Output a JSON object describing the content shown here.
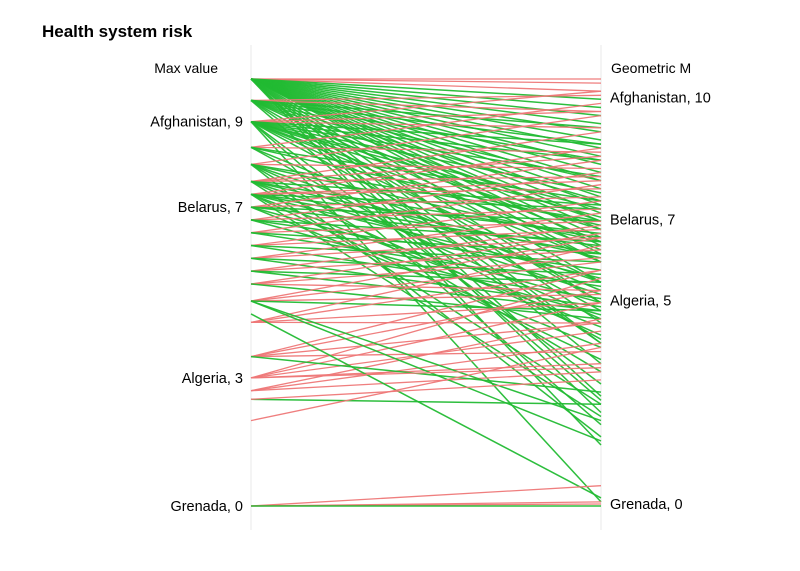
{
  "chart_data": {
    "type": "slope",
    "title": "Health system risk",
    "left_axis": {
      "title": "Max value",
      "range": [
        0,
        10
      ],
      "labels": [
        {
          "text": "Afghanistan, 9",
          "value": 9
        },
        {
          "text": "Belarus, 7",
          "value": 7
        },
        {
          "text": "Algeria, 3",
          "value": 3
        },
        {
          "text": "Grenada, 0",
          "value": 0
        }
      ]
    },
    "right_axis": {
      "title": "Geometric M",
      "range": [
        0,
        10.5
      ],
      "labels": [
        {
          "text": "Afghanistan, 10",
          "value": 10
        },
        {
          "text": "Belarus, 7",
          "value": 7
        },
        {
          "text": "Algeria, 5",
          "value": 5
        },
        {
          "text": "Grenada, 0",
          "value": 0
        }
      ]
    },
    "colors": {
      "decrease": "#22bb33",
      "increase": "#ee7777"
    },
    "lines": [
      [
        10,
        10.5
      ],
      [
        10,
        10.4
      ],
      [
        10,
        10.2
      ],
      [
        10,
        10.0
      ],
      [
        10,
        9.8
      ],
      [
        10,
        9.6
      ],
      [
        10,
        9.4
      ],
      [
        10,
        9.2
      ],
      [
        10,
        9.0
      ],
      [
        10,
        8.8
      ],
      [
        10,
        8.6
      ],
      [
        10,
        8.4
      ],
      [
        10,
        8.2
      ],
      [
        10,
        8.0
      ],
      [
        10,
        7.8
      ],
      [
        10,
        7.6
      ],
      [
        10,
        7.4
      ],
      [
        10,
        7.2
      ],
      [
        10,
        7.0
      ],
      [
        10,
        6.8
      ],
      [
        10,
        6.6
      ],
      [
        10,
        6.4
      ],
      [
        10,
        6.2
      ],
      [
        10,
        6.0
      ],
      [
        10,
        5.5
      ],
      [
        10,
        5.0
      ],
      [
        10,
        4.5
      ],
      [
        10,
        4.0
      ],
      [
        10,
        3.5
      ],
      [
        10,
        2.7
      ],
      [
        10,
        2.3
      ],
      [
        10,
        1.5
      ],
      [
        9.5,
        10.1
      ],
      [
        9.5,
        9.7
      ],
      [
        9.5,
        9.3
      ],
      [
        9.5,
        8.9
      ],
      [
        9.5,
        8.5
      ],
      [
        9.5,
        8.0
      ],
      [
        9.5,
        7.5
      ],
      [
        9.5,
        7.0
      ],
      [
        9.5,
        6.5
      ],
      [
        9.5,
        6.0
      ],
      [
        9.5,
        5.0
      ],
      [
        9.5,
        4.0
      ],
      [
        9.5,
        2.6
      ],
      [
        9,
        10.2
      ],
      [
        9,
        9.7
      ],
      [
        9,
        9.3
      ],
      [
        9,
        8.9
      ],
      [
        9,
        8.5
      ],
      [
        9,
        8.1
      ],
      [
        9,
        7.7
      ],
      [
        9,
        7.3
      ],
      [
        9,
        7.1
      ],
      [
        9,
        6.8
      ],
      [
        9,
        6.3
      ],
      [
        9,
        6.0
      ],
      [
        9,
        5.5
      ],
      [
        9,
        4.8
      ],
      [
        9,
        3.0
      ],
      [
        9,
        2.0
      ],
      [
        9,
        0.1
      ],
      [
        8.4,
        9.9
      ],
      [
        8.4,
        8.7
      ],
      [
        8.4,
        7.5
      ],
      [
        8.4,
        6.9
      ],
      [
        8.4,
        5.3
      ],
      [
        8.4,
        4.1
      ],
      [
        8.0,
        9.6
      ],
      [
        8.0,
        8.3
      ],
      [
        8.0,
        7.0
      ],
      [
        8.0,
        6.5
      ],
      [
        8.0,
        5.5
      ],
      [
        8.0,
        4.6
      ],
      [
        8.0,
        3.3
      ],
      [
        8.0,
        1.7
      ],
      [
        7.6,
        9.2
      ],
      [
        7.6,
        8.6
      ],
      [
        7.6,
        8.1
      ],
      [
        7.6,
        7.4
      ],
      [
        7.6,
        6.6
      ],
      [
        7.6,
        6.1
      ],
      [
        7.6,
        5.2
      ],
      [
        7.6,
        4.2
      ],
      [
        7.6,
        2.5
      ],
      [
        7.3,
        8.8
      ],
      [
        7.3,
        8.0
      ],
      [
        7.3,
        7.3
      ],
      [
        7.3,
        7.8
      ],
      [
        7.3,
        6.7
      ],
      [
        7.3,
        6.2
      ],
      [
        7.3,
        5.6
      ],
      [
        7.3,
        4.4
      ],
      [
        7.3,
        3.6
      ],
      [
        7.3,
        2.2
      ],
      [
        7.0,
        8.5
      ],
      [
        7.0,
        7.6
      ],
      [
        7.0,
        7.0
      ],
      [
        7.0,
        6.4
      ],
      [
        7.0,
        5.0
      ],
      [
        7.0,
        3.9
      ],
      [
        6.7,
        8.2
      ],
      [
        6.7,
        7.3
      ],
      [
        6.7,
        6.5
      ],
      [
        6.7,
        5.8
      ],
      [
        6.7,
        4.7
      ],
      [
        6.4,
        7.9
      ],
      [
        6.4,
        7.0
      ],
      [
        6.4,
        6.2
      ],
      [
        6.4,
        5.4
      ],
      [
        6.1,
        7.5
      ],
      [
        6.1,
        6.8
      ],
      [
        6.1,
        6.0
      ],
      [
        6.1,
        5.1
      ],
      [
        5.8,
        7.2
      ],
      [
        5.8,
        6.6
      ],
      [
        5.8,
        5.7
      ],
      [
        5.8,
        4.9
      ],
      [
        5.5,
        6.9
      ],
      [
        5.5,
        6.3
      ],
      [
        5.5,
        5.5
      ],
      [
        5.5,
        4.8
      ],
      [
        5.2,
        6.7
      ],
      [
        5.2,
        6.1
      ],
      [
        5.2,
        5.3
      ],
      [
        5.2,
        4.6
      ],
      [
        4.8,
        6.6
      ],
      [
        4.8,
        6.0
      ],
      [
        4.8,
        5.2
      ],
      [
        4.8,
        4.8
      ],
      [
        4.3,
        6.4
      ],
      [
        4.3,
        5.8
      ],
      [
        4.3,
        5.0
      ],
      [
        4.3,
        4.5
      ],
      [
        3.5,
        5.8
      ],
      [
        3.5,
        5.3
      ],
      [
        3.5,
        4.5
      ],
      [
        3.5,
        3.8
      ],
      [
        3.0,
        5.6
      ],
      [
        3.0,
        5.0
      ],
      [
        3.0,
        4.3
      ],
      [
        3.0,
        3.5
      ],
      [
        2.7,
        4.6
      ],
      [
        2.7,
        4.0
      ],
      [
        2.7,
        3.3
      ],
      [
        4.8,
        2.1
      ],
      [
        4.8,
        1.6
      ],
      [
        4.5,
        0.2
      ],
      [
        3.5,
        2.8
      ],
      [
        3.0,
        3.4
      ],
      [
        2.5,
        2.5
      ],
      [
        2.5,
        3.1
      ],
      [
        2.0,
        3.9
      ],
      [
        0,
        0.5
      ],
      [
        0,
        0.1
      ],
      [
        0,
        0.05
      ],
      [
        0,
        0.0
      ]
    ]
  }
}
